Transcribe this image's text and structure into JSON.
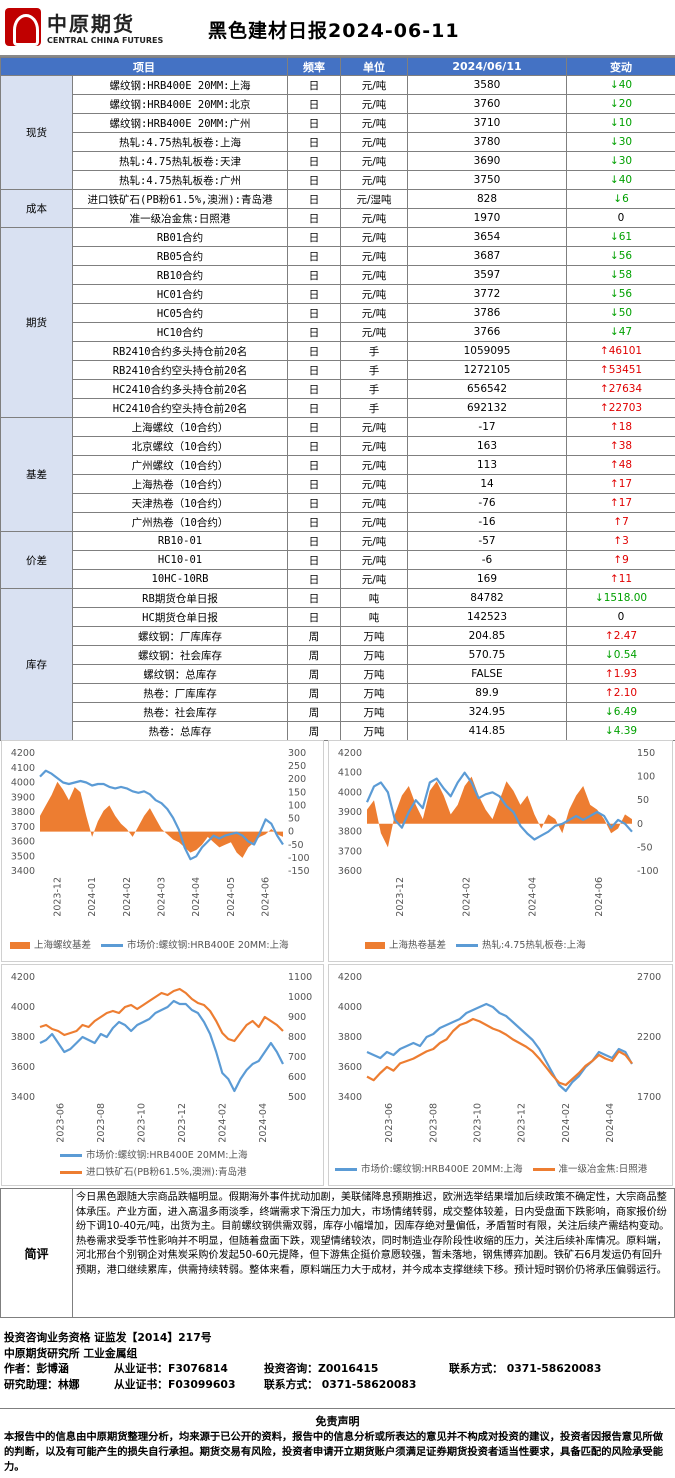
{
  "header": {
    "logo_cn": "中原期货",
    "logo_en": "CENTRAL CHINA FUTURES",
    "title": "黑色建材日报2024-06-11"
  },
  "table": {
    "columns": [
      "项目",
      "频率",
      "单位",
      "2024/06/11",
      "变动"
    ],
    "groups": [
      {
        "category": "现货",
        "rows": [
          {
            "item": "螺纹钢:HRB400E 20MM:上海",
            "freq": "日",
            "unit": "元/吨",
            "value": "3580",
            "dir": "down",
            "change": "40"
          },
          {
            "item": "螺纹钢:HRB400E 20MM:北京",
            "freq": "日",
            "unit": "元/吨",
            "value": "3760",
            "dir": "down",
            "change": "20"
          },
          {
            "item": "螺纹钢:HRB400E 20MM:广州",
            "freq": "日",
            "unit": "元/吨",
            "value": "3710",
            "dir": "down",
            "change": "10"
          },
          {
            "item": "热轧:4.75热轧板卷:上海",
            "freq": "日",
            "unit": "元/吨",
            "value": "3780",
            "dir": "down",
            "change": "30"
          },
          {
            "item": "热轧:4.75热轧板卷:天津",
            "freq": "日",
            "unit": "元/吨",
            "value": "3690",
            "dir": "down",
            "change": "30"
          },
          {
            "item": "热轧:4.75热轧板卷:广州",
            "freq": "日",
            "unit": "元/吨",
            "value": "3750",
            "dir": "down",
            "change": "40"
          }
        ]
      },
      {
        "category": "成本",
        "rows": [
          {
            "item": "进口铁矿石(PB粉61.5%,澳洲):青岛港",
            "freq": "日",
            "unit": "元/湿吨",
            "value": "828",
            "dir": "down",
            "change": "6"
          },
          {
            "item": "准一级冶金焦:日照港",
            "freq": "日",
            "unit": "元/吨",
            "value": "1970",
            "dir": "flat",
            "change": "0"
          }
        ]
      },
      {
        "category": "期货",
        "rows": [
          {
            "item": "RB01合约",
            "freq": "日",
            "unit": "元/吨",
            "value": "3654",
            "dir": "down",
            "change": "61"
          },
          {
            "item": "RB05合约",
            "freq": "日",
            "unit": "元/吨",
            "value": "3687",
            "dir": "down",
            "change": "56"
          },
          {
            "item": "RB10合约",
            "freq": "日",
            "unit": "元/吨",
            "value": "3597",
            "dir": "down",
            "change": "58"
          },
          {
            "item": "HC01合约",
            "freq": "日",
            "unit": "元/吨",
            "value": "3772",
            "dir": "down",
            "change": "56"
          },
          {
            "item": "HC05合约",
            "freq": "日",
            "unit": "元/吨",
            "value": "3786",
            "dir": "down",
            "change": "50"
          },
          {
            "item": "HC10合约",
            "freq": "日",
            "unit": "元/吨",
            "value": "3766",
            "dir": "down",
            "change": "47"
          },
          {
            "item": "RB2410合约多头持仓前20名",
            "freq": "日",
            "unit": "手",
            "value": "1059095",
            "dir": "up",
            "change": "46101"
          },
          {
            "item": "RB2410合约空头持仓前20名",
            "freq": "日",
            "unit": "手",
            "value": "1272105",
            "dir": "up",
            "change": "53451"
          },
          {
            "item": "HC2410合约多头持仓前20名",
            "freq": "日",
            "unit": "手",
            "value": "656542",
            "dir": "up",
            "change": "27634"
          },
          {
            "item": "HC2410合约空头持仓前20名",
            "freq": "日",
            "unit": "手",
            "value": "692132",
            "dir": "up",
            "change": "22703"
          }
        ]
      },
      {
        "category": "基差",
        "rows": [
          {
            "item": "上海螺纹（10合约）",
            "freq": "日",
            "unit": "元/吨",
            "value": "-17",
            "dir": "up",
            "change": "18"
          },
          {
            "item": "北京螺纹（10合约）",
            "freq": "日",
            "unit": "元/吨",
            "value": "163",
            "dir": "up",
            "change": "38"
          },
          {
            "item": "广州螺纹（10合约）",
            "freq": "日",
            "unit": "元/吨",
            "value": "113",
            "dir": "up",
            "change": "48"
          },
          {
            "item": "上海热卷（10合约）",
            "freq": "日",
            "unit": "元/吨",
            "value": "14",
            "dir": "up",
            "change": "17"
          },
          {
            "item": "天津热卷（10合约）",
            "freq": "日",
            "unit": "元/吨",
            "value": "-76",
            "dir": "up",
            "change": "17"
          },
          {
            "item": "广州热卷（10合约）",
            "freq": "日",
            "unit": "元/吨",
            "value": "-16",
            "dir": "up",
            "change": "7"
          }
        ]
      },
      {
        "category": "价差",
        "rows": [
          {
            "item": "RB10-01",
            "freq": "日",
            "unit": "元/吨",
            "value": "-57",
            "dir": "up",
            "change": "3"
          },
          {
            "item": "HC10-01",
            "freq": "日",
            "unit": "元/吨",
            "value": "-6",
            "dir": "up",
            "change": "9"
          },
          {
            "item": "10HC-10RB",
            "freq": "日",
            "unit": "元/吨",
            "value": "169",
            "dir": "up",
            "change": "11"
          }
        ]
      },
      {
        "category": "库存",
        "rows": [
          {
            "item": "RB期货仓单日报",
            "freq": "日",
            "unit": "吨",
            "value": "84782",
            "dir": "down",
            "change": "1518.00"
          },
          {
            "item": "HC期货仓单日报",
            "freq": "日",
            "unit": "吨",
            "value": "142523",
            "dir": "flat",
            "change": "0"
          },
          {
            "item": "螺纹钢：厂库库存",
            "freq": "周",
            "unit": "万吨",
            "value": "204.85",
            "dir": "up",
            "change": "2.47"
          },
          {
            "item": "螺纹钢：社会库存",
            "freq": "周",
            "unit": "万吨",
            "value": "570.75",
            "dir": "down",
            "change": "0.54"
          },
          {
            "item": "螺纹钢：总库存",
            "freq": "周",
            "unit": "万吨",
            "value": "FALSE",
            "dir": "up",
            "change": "1.93"
          },
          {
            "item": "热卷：厂库库存",
            "freq": "周",
            "unit": "万吨",
            "value": "89.9",
            "dir": "up",
            "change": "2.10"
          },
          {
            "item": "热卷：社会库存",
            "freq": "周",
            "unit": "万吨",
            "value": "324.95",
            "dir": "down",
            "change": "6.49"
          },
          {
            "item": "热卷：总库存",
            "freq": "周",
            "unit": "万吨",
            "value": "414.85",
            "dir": "down",
            "change": "4.39"
          }
        ]
      }
    ]
  },
  "colors": {
    "orange": "#ed7d31",
    "blue": "#5b9bd5",
    "up": "#e00000",
    "down": "#00a000",
    "header": "#4472c4",
    "category": "#d9e1f2"
  },
  "chart_data": [
    {
      "type": "line",
      "left_axis": {
        "min": 3400,
        "max": 4200,
        "ticks": [
          3400,
          3500,
          3600,
          3700,
          3800,
          3900,
          4000,
          4100,
          4200
        ]
      },
      "right_axis": {
        "min": -150,
        "max": 300,
        "ticks": [
          -150,
          -100,
          -50,
          0,
          50,
          100,
          150,
          200,
          250,
          300
        ]
      },
      "x_labels": [
        "2023-12",
        "2024-01",
        "2024-02",
        "2024-03",
        "2024-04",
        "2024-05",
        "2024-06"
      ],
      "series": [
        {
          "name": "上海螺纹基差",
          "kind": "area",
          "axis": "right",
          "color": "#ed7d31",
          "values": [
            60,
            100,
            140,
            190,
            160,
            120,
            170,
            150,
            60,
            -20,
            40,
            80,
            100,
            60,
            30,
            10,
            -20,
            20,
            60,
            90,
            50,
            10,
            -10,
            -30,
            -40,
            -60,
            -80,
            -70,
            -50,
            -20,
            -40,
            -60,
            -50,
            -40,
            -80,
            -100,
            -60,
            -40,
            -20,
            -10,
            10,
            -10,
            -20
          ]
        },
        {
          "name": "市场价:螺纹钢:HRB400E 20MM:上海",
          "kind": "line",
          "axis": "left",
          "color": "#5b9bd5",
          "values": [
            4040,
            4080,
            4060,
            4030,
            4000,
            3990,
            4000,
            4010,
            4000,
            3980,
            3990,
            3990,
            3970,
            3960,
            3970,
            3960,
            3940,
            3930,
            3940,
            3920,
            3880,
            3860,
            3820,
            3760,
            3680,
            3560,
            3480,
            3500,
            3560,
            3600,
            3640,
            3620,
            3640,
            3650,
            3660,
            3640,
            3600,
            3580,
            3660,
            3750,
            3720,
            3640,
            3580
          ]
        }
      ]
    },
    {
      "type": "line",
      "left_axis": {
        "min": 3600,
        "max": 4200,
        "ticks": [
          3600,
          3700,
          3800,
          3900,
          4000,
          4100,
          4200
        ]
      },
      "right_axis": {
        "min": -100,
        "max": 150,
        "ticks": [
          -100,
          -50,
          0,
          50,
          100,
          150
        ]
      },
      "x_labels": [
        "2023-12",
        "2024-02",
        "2024-04",
        "2024-06"
      ],
      "series": [
        {
          "name": "上海热卷基差",
          "kind": "area",
          "axis": "right",
          "color": "#ed7d31",
          "values": [
            30,
            50,
            -20,
            -50,
            20,
            60,
            80,
            40,
            10,
            70,
            90,
            60,
            20,
            40,
            80,
            100,
            60,
            30,
            10,
            50,
            90,
            70,
            40,
            60,
            20,
            -10,
            20,
            10,
            -20,
            30,
            60,
            80,
            40,
            30,
            10,
            -20,
            -10,
            20,
            10
          ]
        },
        {
          "name": "热轧:4.75热轧板卷:上海",
          "kind": "line",
          "axis": "left",
          "color": "#5b9bd5",
          "values": [
            3950,
            4030,
            4050,
            4000,
            3860,
            3820,
            3900,
            3960,
            3920,
            4050,
            4070,
            4020,
            3980,
            4050,
            4100,
            4050,
            3970,
            3990,
            4000,
            3980,
            3930,
            3900,
            3830,
            3790,
            3760,
            3780,
            3800,
            3830,
            3840,
            3860,
            3880,
            3860,
            3880,
            3900,
            3880,
            3820,
            3860,
            3840,
            3800
          ]
        }
      ]
    },
    {
      "type": "line",
      "left_axis": {
        "min": 3400,
        "max": 4200,
        "ticks": [
          3400,
          3600,
          3800,
          4000,
          4200
        ]
      },
      "right_axis": {
        "min": 500,
        "max": 1100,
        "ticks": [
          500,
          600,
          700,
          800,
          900,
          1000,
          1100
        ]
      },
      "x_labels": [
        "2023-06",
        "2023-08",
        "2023-10",
        "2023-12",
        "2024-02",
        "2024-04"
      ],
      "series": [
        {
          "name": "市场价:螺纹钢:HRB400E 20MM:上海",
          "kind": "line",
          "axis": "left",
          "color": "#5b9bd5",
          "values": [
            3760,
            3780,
            3820,
            3760,
            3700,
            3720,
            3760,
            3800,
            3780,
            3760,
            3820,
            3800,
            3860,
            3900,
            3880,
            3840,
            3880,
            3900,
            3920,
            3960,
            3980,
            4000,
            4040,
            4020,
            4020,
            3980,
            3960,
            3900,
            3820,
            3700,
            3560,
            3520,
            3440,
            3520,
            3580,
            3620,
            3640,
            3700,
            3760,
            3700,
            3620
          ]
        },
        {
          "name": "进口铁矿石(PB粉61.5%,澳洲):青岛港",
          "kind": "line",
          "axis": "right",
          "color": "#ed7d31",
          "values": [
            850,
            860,
            840,
            830,
            810,
            820,
            830,
            860,
            850,
            880,
            900,
            920,
            930,
            920,
            950,
            960,
            940,
            960,
            980,
            1000,
            1020,
            1010,
            1030,
            1040,
            1020,
            990,
            970,
            960,
            930,
            880,
            820,
            790,
            780,
            820,
            860,
            880,
            850,
            900,
            880,
            860,
            830
          ]
        }
      ]
    },
    {
      "type": "line",
      "left_axis": {
        "min": 3400,
        "max": 4200,
        "ticks": [
          3400,
          3600,
          3800,
          4000,
          4200
        ]
      },
      "right_axis": {
        "min": 1700,
        "max": 2700,
        "ticks": [
          1700,
          2200,
          2700
        ]
      },
      "x_labels": [
        "2023-06",
        "2023-08",
        "2023-10",
        "2023-12",
        "2024-02",
        "2024-04"
      ],
      "series": [
        {
          "name": "市场价:螺纹钢:HRB400E 20MM:上海",
          "kind": "line",
          "axis": "left",
          "color": "#5b9bd5",
          "values": [
            3700,
            3680,
            3660,
            3700,
            3680,
            3720,
            3740,
            3760,
            3740,
            3800,
            3820,
            3860,
            3880,
            3900,
            3920,
            3960,
            3980,
            4000,
            4020,
            4000,
            3960,
            3940,
            3900,
            3860,
            3820,
            3780,
            3720,
            3640,
            3560,
            3480,
            3440,
            3500,
            3540,
            3600,
            3640,
            3700,
            3680,
            3660,
            3720,
            3700,
            3620
          ]
        },
        {
          "name": "准一级冶金焦:日照港",
          "kind": "line",
          "axis": "right",
          "color": "#ed7d31",
          "values": [
            1870,
            1840,
            1900,
            1950,
            1920,
            1980,
            2000,
            2020,
            2050,
            2080,
            2100,
            2150,
            2180,
            2250,
            2300,
            2320,
            2350,
            2330,
            2300,
            2270,
            2250,
            2220,
            2180,
            2150,
            2120,
            2080,
            2020,
            1950,
            1880,
            1820,
            1800,
            1850,
            1900,
            1960,
            2000,
            2050,
            2020,
            2000,
            2080,
            2050,
            1980
          ]
        }
      ]
    }
  ],
  "comment": {
    "label": "简评",
    "text": "今日黑色跟随大宗商品跌幅明显。假期海外事件扰动加剧，美联储降息预期推迟，欧洲选举结果增加后续政策不确定性，大宗商品整体承压。产业方面，进入高温多雨淡季，终端需求下滑压力加大，市场情绪转弱，成交整体较差，日内受盘面下跌影响，商家报价纷纷下调10-40元/吨，出货为主。目前螺纹钢供需双弱，库存小幅增加，因库存绝对量偏低，矛盾暂时有限，关注后续产需结构变动。热卷需求受季节性影响并不明显，但随着盘面下跌，观望情绪较浓，同时制造业存阶段性收缩的压力，关注后续补库情况。原料端，河北邢台个别钢企对焦炭采购价发起50-60元提降，但下游焦企挺价意愿较强，暂未落地，钢焦博弈加剧。铁矿石6月发运仍有回升预期，港口继续累库，供需持续转弱。整体来看，原料端压力大于成材，并今成本支撑继续下移。预计短时钢价仍将承压偏弱运行。"
  },
  "footer": {
    "line1": "投资咨询业务资格   证监发【2014】217号",
    "line2": "中原期货研究所   工业金属组",
    "author_label": "作者：彭博涵",
    "author_cert": "从业证书：F3076814",
    "author_consult": "投资咨询：Z0016415",
    "contact": "联系方式：  0371-58620083",
    "assistant_label": "研究助理：林娜",
    "assistant_cert": "从业证书：F03099603",
    "assistant_contact": "联系方式：  0371-58620083"
  },
  "disclaimer": {
    "title": "免责声明",
    "text": "本报告中的信息由中原期货整理分析，均来源于已公开的资料，报告中的信息分析或所表达的意见并不构成对投资的建议，投资者因报告意见所做的判断，以及有可能产生的损失自行承担。期货交易有风险，投资者申请开立期货账户须满足证券期货投资者适当性要求，具备匹配的风险承受能力。"
  }
}
